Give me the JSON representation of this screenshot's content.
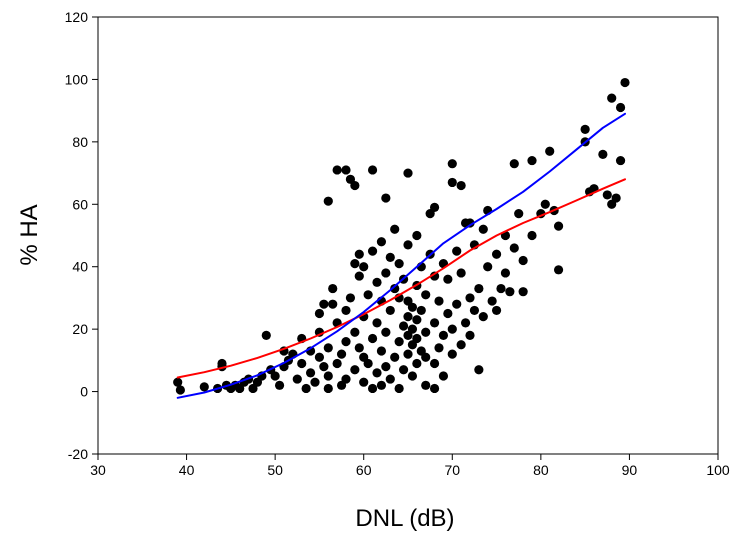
{
  "chart_data": {
    "type": "scatter",
    "title": "",
    "xlabel": "DNL (dB)",
    "ylabel": "% HA",
    "xlim": [
      30,
      100
    ],
    "ylim": [
      -20,
      120
    ],
    "xticks": [
      30,
      40,
      50,
      60,
      70,
      80,
      90,
      100
    ],
    "yticks": [
      -20,
      0,
      20,
      40,
      60,
      80,
      100,
      120
    ],
    "grid": false,
    "legend": "none",
    "point_color": "#000000",
    "points": [
      [
        39,
        3
      ],
      [
        39.3,
        0.5
      ],
      [
        42,
        1.5
      ],
      [
        43.5,
        1
      ],
      [
        44,
        8
      ],
      [
        44,
        9
      ],
      [
        44.5,
        2
      ],
      [
        45,
        1
      ],
      [
        45.5,
        2
      ],
      [
        46,
        1
      ],
      [
        46.5,
        3
      ],
      [
        47,
        4
      ],
      [
        47.5,
        1
      ],
      [
        48,
        3
      ],
      [
        48.5,
        5
      ],
      [
        49,
        18
      ],
      [
        49.5,
        7
      ],
      [
        50,
        5
      ],
      [
        50.5,
        2
      ],
      [
        51,
        8
      ],
      [
        51,
        13
      ],
      [
        51.5,
        10
      ],
      [
        52,
        12
      ],
      [
        52.5,
        4
      ],
      [
        53,
        9
      ],
      [
        53,
        17
      ],
      [
        53.5,
        1
      ],
      [
        54,
        6
      ],
      [
        54,
        13
      ],
      [
        54.5,
        3
      ],
      [
        55,
        11
      ],
      [
        55,
        19
      ],
      [
        55,
        25
      ],
      [
        55.5,
        8
      ],
      [
        55.5,
        28
      ],
      [
        56,
        1
      ],
      [
        56,
        5
      ],
      [
        56,
        14
      ],
      [
        56,
        61
      ],
      [
        56.5,
        28
      ],
      [
        56.5,
        33
      ],
      [
        57,
        9
      ],
      [
        57,
        22
      ],
      [
        57,
        71
      ],
      [
        57.5,
        2
      ],
      [
        57.5,
        12
      ],
      [
        58,
        4
      ],
      [
        58,
        16
      ],
      [
        58,
        26
      ],
      [
        58,
        71
      ],
      [
        58.5,
        30
      ],
      [
        58.5,
        68
      ],
      [
        59,
        7
      ],
      [
        59,
        19
      ],
      [
        59,
        41
      ],
      [
        59,
        66
      ],
      [
        59.5,
        14
      ],
      [
        59.5,
        37
      ],
      [
        59.5,
        44
      ],
      [
        60,
        3
      ],
      [
        60,
        11
      ],
      [
        60,
        24
      ],
      [
        60,
        40
      ],
      [
        60.5,
        9
      ],
      [
        60.5,
        31
      ],
      [
        61,
        1
      ],
      [
        61,
        17
      ],
      [
        61,
        45
      ],
      [
        61,
        71
      ],
      [
        61.5,
        6
      ],
      [
        61.5,
        22
      ],
      [
        61.5,
        35
      ],
      [
        62,
        2
      ],
      [
        62,
        13
      ],
      [
        62,
        29
      ],
      [
        62,
        48
      ],
      [
        62.5,
        8
      ],
      [
        62.5,
        19
      ],
      [
        62.5,
        38
      ],
      [
        62.5,
        62
      ],
      [
        63,
        4
      ],
      [
        63,
        26
      ],
      [
        63,
        43
      ],
      [
        63.5,
        11
      ],
      [
        63.5,
        33
      ],
      [
        63.5,
        52
      ],
      [
        64,
        1
      ],
      [
        64,
        16
      ],
      [
        64,
        30
      ],
      [
        64,
        41
      ],
      [
        64.5,
        7
      ],
      [
        64.5,
        21
      ],
      [
        64.5,
        36
      ],
      [
        65,
        12
      ],
      [
        65,
        18
      ],
      [
        65,
        24
      ],
      [
        65,
        29
      ],
      [
        65,
        47
      ],
      [
        65,
        70
      ],
      [
        65.5,
        5
      ],
      [
        65.5,
        15
      ],
      [
        65.5,
        20
      ],
      [
        65.5,
        27
      ],
      [
        66,
        9
      ],
      [
        66,
        17
      ],
      [
        66,
        23
      ],
      [
        66,
        34
      ],
      [
        66,
        50
      ],
      [
        66.5,
        13
      ],
      [
        66.5,
        26
      ],
      [
        66.5,
        40
      ],
      [
        67,
        2
      ],
      [
        67,
        11
      ],
      [
        67,
        19
      ],
      [
        67,
        31
      ],
      [
        67.5,
        44
      ],
      [
        67.5,
        57
      ],
      [
        68,
        1
      ],
      [
        68,
        9
      ],
      [
        68,
        22
      ],
      [
        68,
        37
      ],
      [
        68,
        59
      ],
      [
        68.5,
        14
      ],
      [
        68.5,
        29
      ],
      [
        69,
        5
      ],
      [
        69,
        18
      ],
      [
        69,
        41
      ],
      [
        69.5,
        25
      ],
      [
        69.5,
        36
      ],
      [
        70,
        12
      ],
      [
        70,
        20
      ],
      [
        70,
        67
      ],
      [
        70,
        73
      ],
      [
        70.5,
        28
      ],
      [
        70.5,
        45
      ],
      [
        71,
        15
      ],
      [
        71,
        38
      ],
      [
        71,
        66
      ],
      [
        71.5,
        22
      ],
      [
        71.5,
        54
      ],
      [
        72,
        18
      ],
      [
        72,
        30
      ],
      [
        72,
        54
      ],
      [
        72.5,
        26
      ],
      [
        72.5,
        47
      ],
      [
        73,
        7
      ],
      [
        73,
        33
      ],
      [
        73.5,
        24
      ],
      [
        73.5,
        52
      ],
      [
        74,
        40
      ],
      [
        74,
        58
      ],
      [
        74.5,
        29
      ],
      [
        75,
        26
      ],
      [
        75,
        44
      ],
      [
        75.5,
        33
      ],
      [
        76,
        38
      ],
      [
        76,
        50
      ],
      [
        76.5,
        32
      ],
      [
        77,
        46
      ],
      [
        77,
        73
      ],
      [
        77.5,
        57
      ],
      [
        78,
        32
      ],
      [
        78,
        42
      ],
      [
        79,
        50
      ],
      [
        79,
        74
      ],
      [
        80,
        57
      ],
      [
        80.5,
        60
      ],
      [
        81,
        77
      ],
      [
        81.5,
        58
      ],
      [
        82,
        39
      ],
      [
        82,
        53
      ],
      [
        85,
        84
      ],
      [
        85,
        80
      ],
      [
        85.5,
        64
      ],
      [
        86,
        65
      ],
      [
        87,
        76
      ],
      [
        87.5,
        63
      ],
      [
        88,
        60
      ],
      [
        88,
        94
      ],
      [
        88.5,
        62
      ],
      [
        89,
        91
      ],
      [
        89,
        74
      ],
      [
        89.5,
        99
      ]
    ],
    "series": [
      {
        "type": "line",
        "color": "#ff0000",
        "x": [
          39,
          42,
          45,
          48,
          51,
          54,
          57,
          60,
          63,
          66,
          69,
          72,
          75,
          78,
          81,
          84,
          87,
          89.5
        ],
        "y": [
          4.5,
          6.2,
          8.3,
          10.8,
          13.7,
          17,
          20.7,
          24.8,
          29.3,
          34.2,
          39.5,
          45.2,
          50,
          54,
          57.5,
          61.2,
          65,
          68
        ]
      },
      {
        "type": "line",
        "color": "#0000ff",
        "x": [
          39,
          42,
          45,
          48,
          51,
          54,
          57,
          60,
          63,
          66,
          69,
          72,
          75,
          78,
          81,
          84,
          87,
          89.5
        ],
        "y": [
          -2,
          -0.3,
          2.2,
          5.2,
          9.2,
          13.9,
          19.3,
          25.5,
          32.5,
          40,
          47.5,
          53.3,
          58.5,
          64,
          70.5,
          77.5,
          84.5,
          89
        ]
      }
    ]
  }
}
